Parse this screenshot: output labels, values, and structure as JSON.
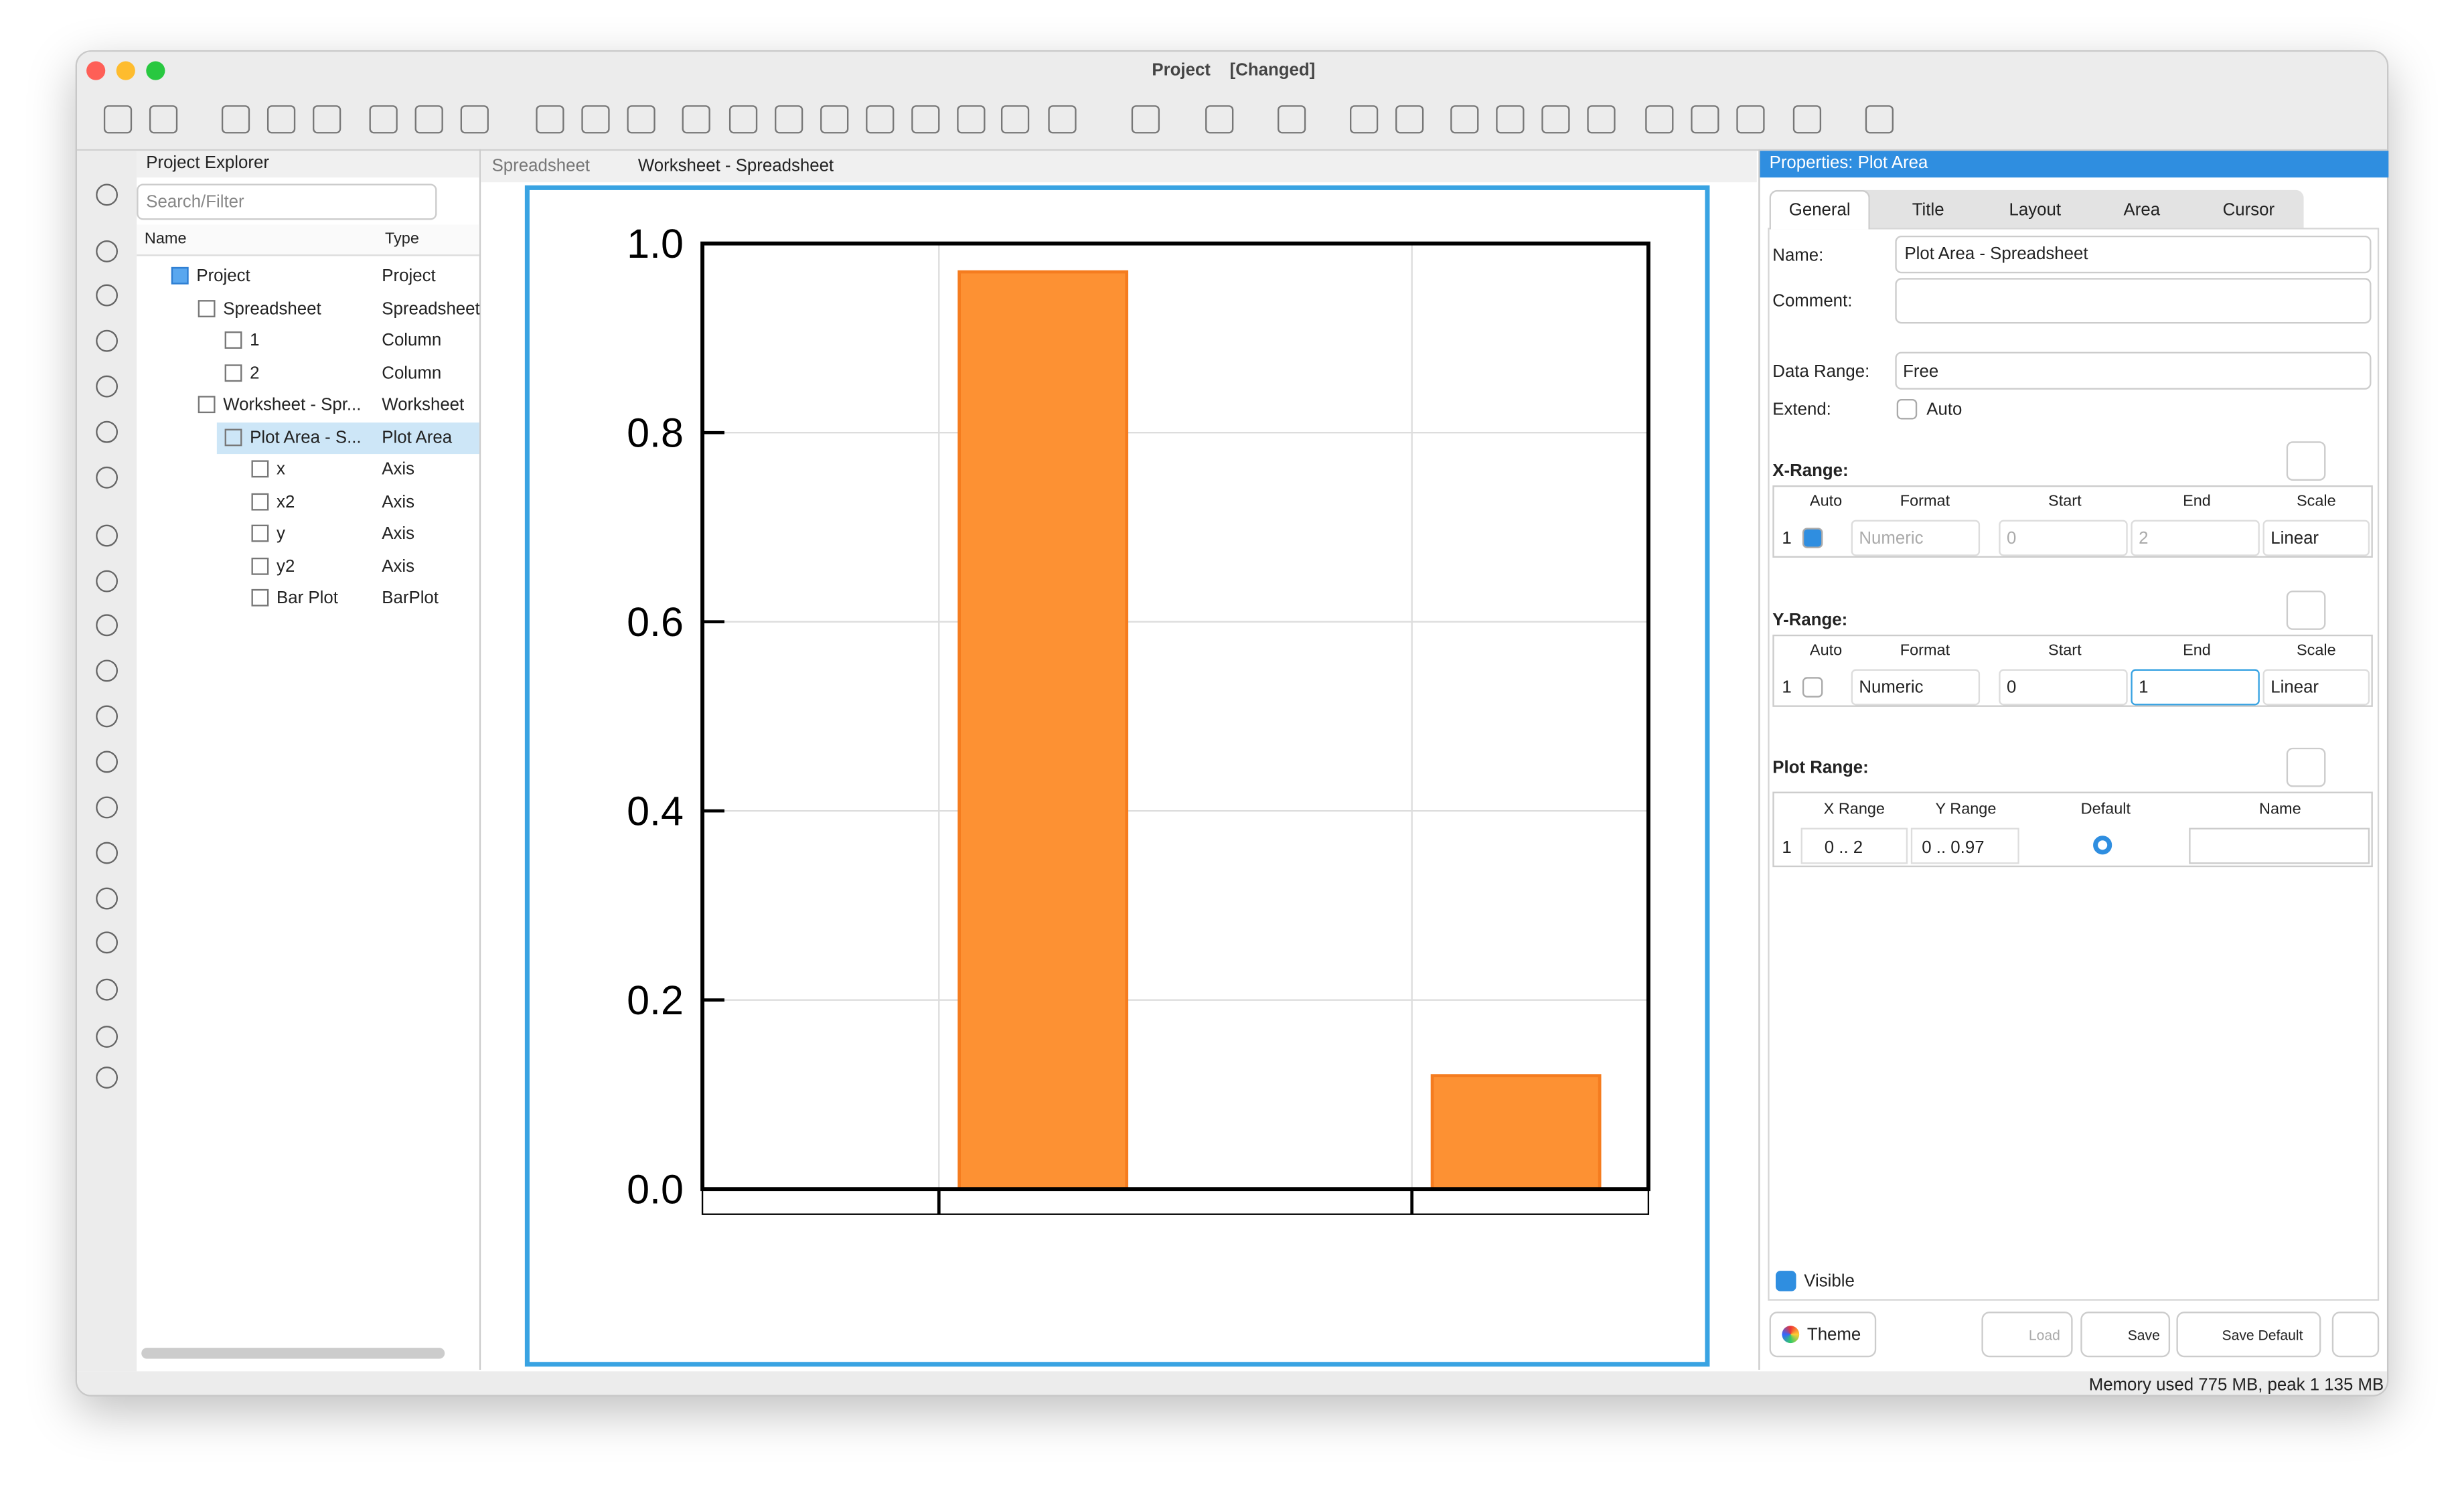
{
  "window_title": "Project    [Changed]",
  "explorer": {
    "title": "Project Explorer",
    "search_placeholder": "Search/Filter",
    "columns": [
      "Name",
      "Type"
    ],
    "rows": [
      [
        "Project",
        "Project"
      ],
      [
        "Spreadsheet",
        "Spreadsheet"
      ],
      [
        "1",
        "Column"
      ],
      [
        "2",
        "Column"
      ],
      [
        "Worksheet - Spr...",
        "Worksheet"
      ],
      [
        "Plot Area - S...",
        "Plot Area"
      ],
      [
        "x",
        "Axis"
      ],
      [
        "x2",
        "Axis"
      ],
      [
        "y",
        "Axis"
      ],
      [
        "y2",
        "Axis"
      ],
      [
        "Bar Plot",
        "BarPlot"
      ]
    ]
  },
  "tabs": [
    "Spreadsheet",
    "Worksheet - Spreadsheet"
  ],
  "plot": {
    "type": "bar",
    "x": [
      0.72,
      1.72
    ],
    "values": [
      0.97,
      0.12
    ],
    "color": "#fd9133",
    "xlim": [
      0,
      2
    ],
    "xticks": [
      0.5,
      1.5
    ],
    "ylim": [
      0,
      1
    ],
    "yticks": [
      {
        "value": 0,
        "label": "0.0"
      },
      0.2,
      0.4,
      0.6,
      0.8,
      {
        "value": 1,
        "label": "1.0"
      }
    ],
    "grid": true
  },
  "properties": {
    "title": "Properties: Plot Area",
    "tabs": [
      "General",
      "Title",
      "Layout",
      "Area",
      "Cursor"
    ],
    "name_label": "Name:",
    "name_value": "Plot Area - Spreadsheet",
    "comment_label": "Comment:",
    "data_range_label": "Data Range:",
    "data_range_value": "Free",
    "extend_label": "Extend:",
    "extend_auto": "Auto",
    "x_range": {
      "title": "X-Range:",
      "columns": [
        "Auto",
        "Format",
        "Start",
        "End",
        "Scale"
      ],
      "row": [
        "1",
        "Numeric",
        "0",
        "2",
        "Linear"
      ]
    },
    "y_range": {
      "title": "Y-Range:",
      "columns": [
        "Auto",
        "Format",
        "Start",
        "End",
        "Scale"
      ],
      "row": [
        "1",
        "Numeric",
        "0",
        "1",
        "Linear"
      ]
    },
    "plot_range": {
      "title": "Plot Range:",
      "columns": [
        "X Range",
        "Y Range",
        "Default",
        "Name"
      ],
      "row": [
        "1",
        "0 .. 2",
        "0 .. 0.97"
      ]
    },
    "visible": "Visible",
    "buttons": [
      "Theme",
      "Load",
      "Save",
      "Save Default"
    ]
  },
  "status": "Memory used 775 MB, peak 1 135 MB"
}
